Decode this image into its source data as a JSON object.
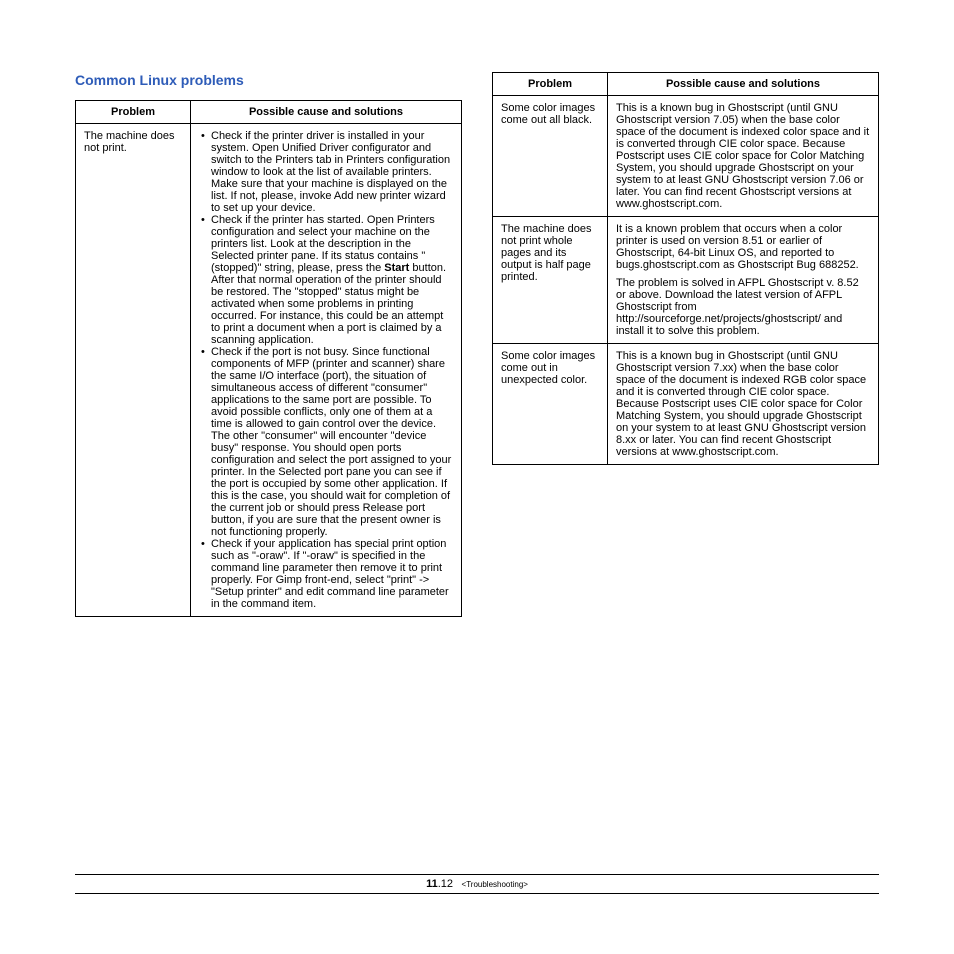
{
  "title": "Common Linux problems",
  "headers": {
    "problem": "Problem",
    "solution": "Possible cause and solutions"
  },
  "table1": {
    "rows": [
      {
        "problem": "The machine does not print.",
        "items": [
          "Check if the printer driver is installed in your system. Open Unified Driver configurator and switch to the Printers tab in Printers configuration window to look at the list of available printers. Make sure that your machine is displayed on the list. If not, please, invoke Add new printer wizard to set up your device.",
          "Check if the printer has started. Open Printers configuration and select your machine on the printers list. Look at the description in the Selected printer pane. If its status contains \"(stopped)\" string, please, press the ",
          "Check if the port is not busy. Since functional components of MFP (printer and scanner) share the same I/O interface (port), the situation of simultaneous access of different \"consumer\" applications to the same port are possible. To avoid possible conflicts, only one of them at a time is allowed to gain control over the device. The other \"consumer\" will encounter \"device busy\" response. You should open ports configuration and select the port assigned to your printer. In the Selected port pane you can see if the port is occupied by some other application. If this is the case, you should wait for completion of the current job or should press Release port button, if you are sure that the present owner is not functioning properly.",
          "Check if your application has special print option such as \"-oraw\". If \"-oraw\" is specified in the command line parameter then remove it to print properly. For Gimp front-end, select \"print\" -> \"Setup printer\" and edit command line parameter in the command item."
        ],
        "item1_bold": "Start",
        "item1_after": " button. After that normal operation of the printer should be restored. The \"stopped\" status might be activated when some problems in printing occurred. For instance, this could be an attempt to print a document when a port is claimed by a scanning application."
      }
    ]
  },
  "table2": {
    "rows": [
      {
        "problem": "Some color images come out all black.",
        "paras": [
          "This is a known bug in Ghostscript (until GNU Ghostscript version 7.05) when the base color space of the document is indexed color space and it is converted through CIE color space. Because Postscript uses CIE color space for Color Matching System, you should upgrade Ghostscript on your system to at least GNU Ghostscript version 7.06 or later. You can find recent Ghostscript versions at www.ghostscript.com."
        ]
      },
      {
        "problem": "The machine does not print whole pages and its output is half page printed.",
        "paras": [
          "It is a known problem that occurs when a color printer is used on version 8.51 or earlier of Ghostscript, 64-bit Linux OS, and reported to bugs.ghostscript.com as Ghostscript Bug 688252.",
          "The problem is solved in AFPL Ghostscript v. 8.52 or above. Download the latest version of AFPL Ghostscript from http://sourceforge.net/projects/ghostscript/ and install it to solve this problem."
        ]
      },
      {
        "problem": "Some color images come out in unexpected color.",
        "paras": [
          "This is a known bug in Ghostscript (until GNU Ghostscript version 7.xx) when the base color space of the document is indexed RGB color space and it is converted through CIE color space. Because Postscript uses CIE color space for Color Matching System, you should upgrade Ghostscript on your system to at least GNU Ghostscript version 8.xx or later. You can find recent Ghostscript versions at www.ghostscript.com."
        ]
      }
    ]
  },
  "footer": {
    "chapter": "11",
    "page": ".12",
    "section": "<Troubleshooting>"
  }
}
